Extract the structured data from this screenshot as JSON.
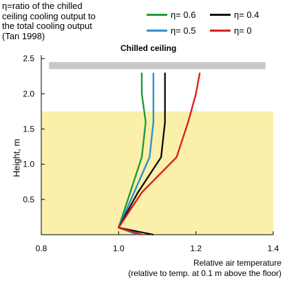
{
  "annotation": {
    "lines": [
      "η=ratio of the chilled",
      "ceiling cooling output to",
      "the total cooling output",
      "(Tan 1998)"
    ]
  },
  "ceiling_label": "Chilled ceiling",
  "colors": {
    "eta_0_6": "#1f9a3a",
    "eta_0_5": "#2f8fcf",
    "eta_0_4": "#111111",
    "eta_0": "#d82020",
    "occupied_zone": "#faf0aa",
    "ceiling_panel": "#c8c8c8"
  },
  "chart_data": {
    "type": "line",
    "title": "",
    "xlabel_lines": [
      "Relative air temperature",
      "(relative to temp. at 0.1 m above the floor)"
    ],
    "ylabel": "Height, m",
    "xlim": [
      0.8,
      1.4
    ],
    "ylim": [
      0.0,
      2.5
    ],
    "xticks": [
      "0.8",
      "1.0",
      "1.2",
      "1.4"
    ],
    "yticks": [
      "0.5",
      "1.0",
      "1.5",
      "2.0",
      "2.5"
    ],
    "occupied_zone": [
      0.0,
      1.75
    ],
    "ceiling_panel": {
      "x": [
        0.82,
        1.38
      ],
      "y": [
        2.35,
        2.45
      ]
    },
    "series": [
      {
        "name": "η= 0.6",
        "color": "#1f9a3a",
        "x": [
          1.06,
          1.0,
          1.03,
          1.06,
          1.07,
          1.06,
          1.06
        ],
        "y": [
          0.0,
          0.1,
          0.6,
          1.1,
          1.6,
          2.0,
          2.3
        ]
      },
      {
        "name": "η= 0.5",
        "color": "#2f8fcf",
        "x": [
          1.05,
          1.0,
          1.04,
          1.08,
          1.09,
          1.09,
          1.09
        ],
        "y": [
          0.0,
          0.1,
          0.6,
          1.1,
          1.6,
          2.0,
          2.3
        ]
      },
      {
        "name": "η= 0.4",
        "color": "#111111",
        "x": [
          1.09,
          1.0,
          1.05,
          1.11,
          1.12,
          1.12,
          1.12
        ],
        "y": [
          0.0,
          0.1,
          0.6,
          1.1,
          1.6,
          2.0,
          2.3
        ]
      },
      {
        "name": "η= 0",
        "color": "#d82020",
        "x": [
          1.06,
          1.0,
          1.06,
          1.15,
          1.18,
          1.2,
          1.21
        ],
        "y": [
          0.0,
          0.1,
          0.6,
          1.1,
          1.6,
          2.0,
          2.3
        ]
      }
    ]
  }
}
